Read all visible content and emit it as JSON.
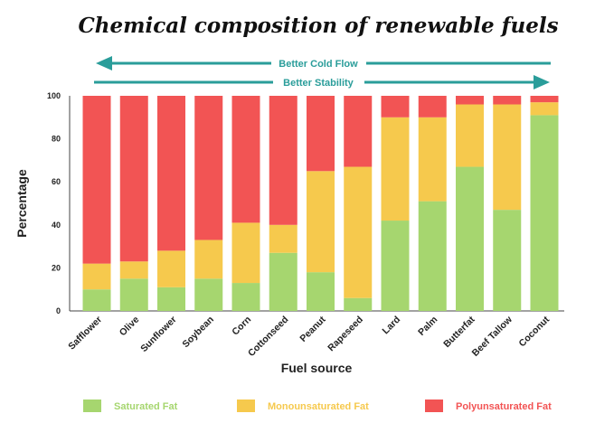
{
  "chart_data": {
    "type": "bar",
    "stacked": true,
    "title": "Chemical composition of renewable fuels",
    "xlabel": "Fuel source",
    "ylabel": "Percentage",
    "ylim": [
      0,
      100
    ],
    "yticks": [
      0,
      20,
      40,
      60,
      80,
      100
    ],
    "grid": false,
    "legend_position": "bottom",
    "categories": [
      "Safflower",
      "Olive",
      "Sunflower",
      "Soybean",
      "Corn",
      "Cottonseed",
      "Peanut",
      "Rapeseed",
      "Lard",
      "Palm",
      "Butterfat",
      "Beef Tallow",
      "Coconut"
    ],
    "series": [
      {
        "name": "Saturated Fat",
        "color": "#a6d66f",
        "values": [
          10,
          15,
          11,
          15,
          13,
          27,
          18,
          6,
          42,
          51,
          67,
          47,
          91
        ]
      },
      {
        "name": "Monounsaturated Fat",
        "color": "#f6c94d",
        "values": [
          12,
          8,
          17,
          18,
          28,
          13,
          47,
          61,
          48,
          39,
          29,
          49,
          6
        ]
      },
      {
        "name": "Polyunsaturated Fat",
        "color": "#f25454",
        "values": [
          78,
          77,
          72,
          67,
          59,
          60,
          35,
          33,
          10,
          10,
          4,
          4,
          3
        ]
      }
    ],
    "annotations": [
      {
        "text": "Better Cold Flow",
        "arrow": "left"
      },
      {
        "text": "Better Stability",
        "arrow": "right"
      }
    ],
    "colors": {
      "arrow": "#2a9d9a"
    }
  }
}
